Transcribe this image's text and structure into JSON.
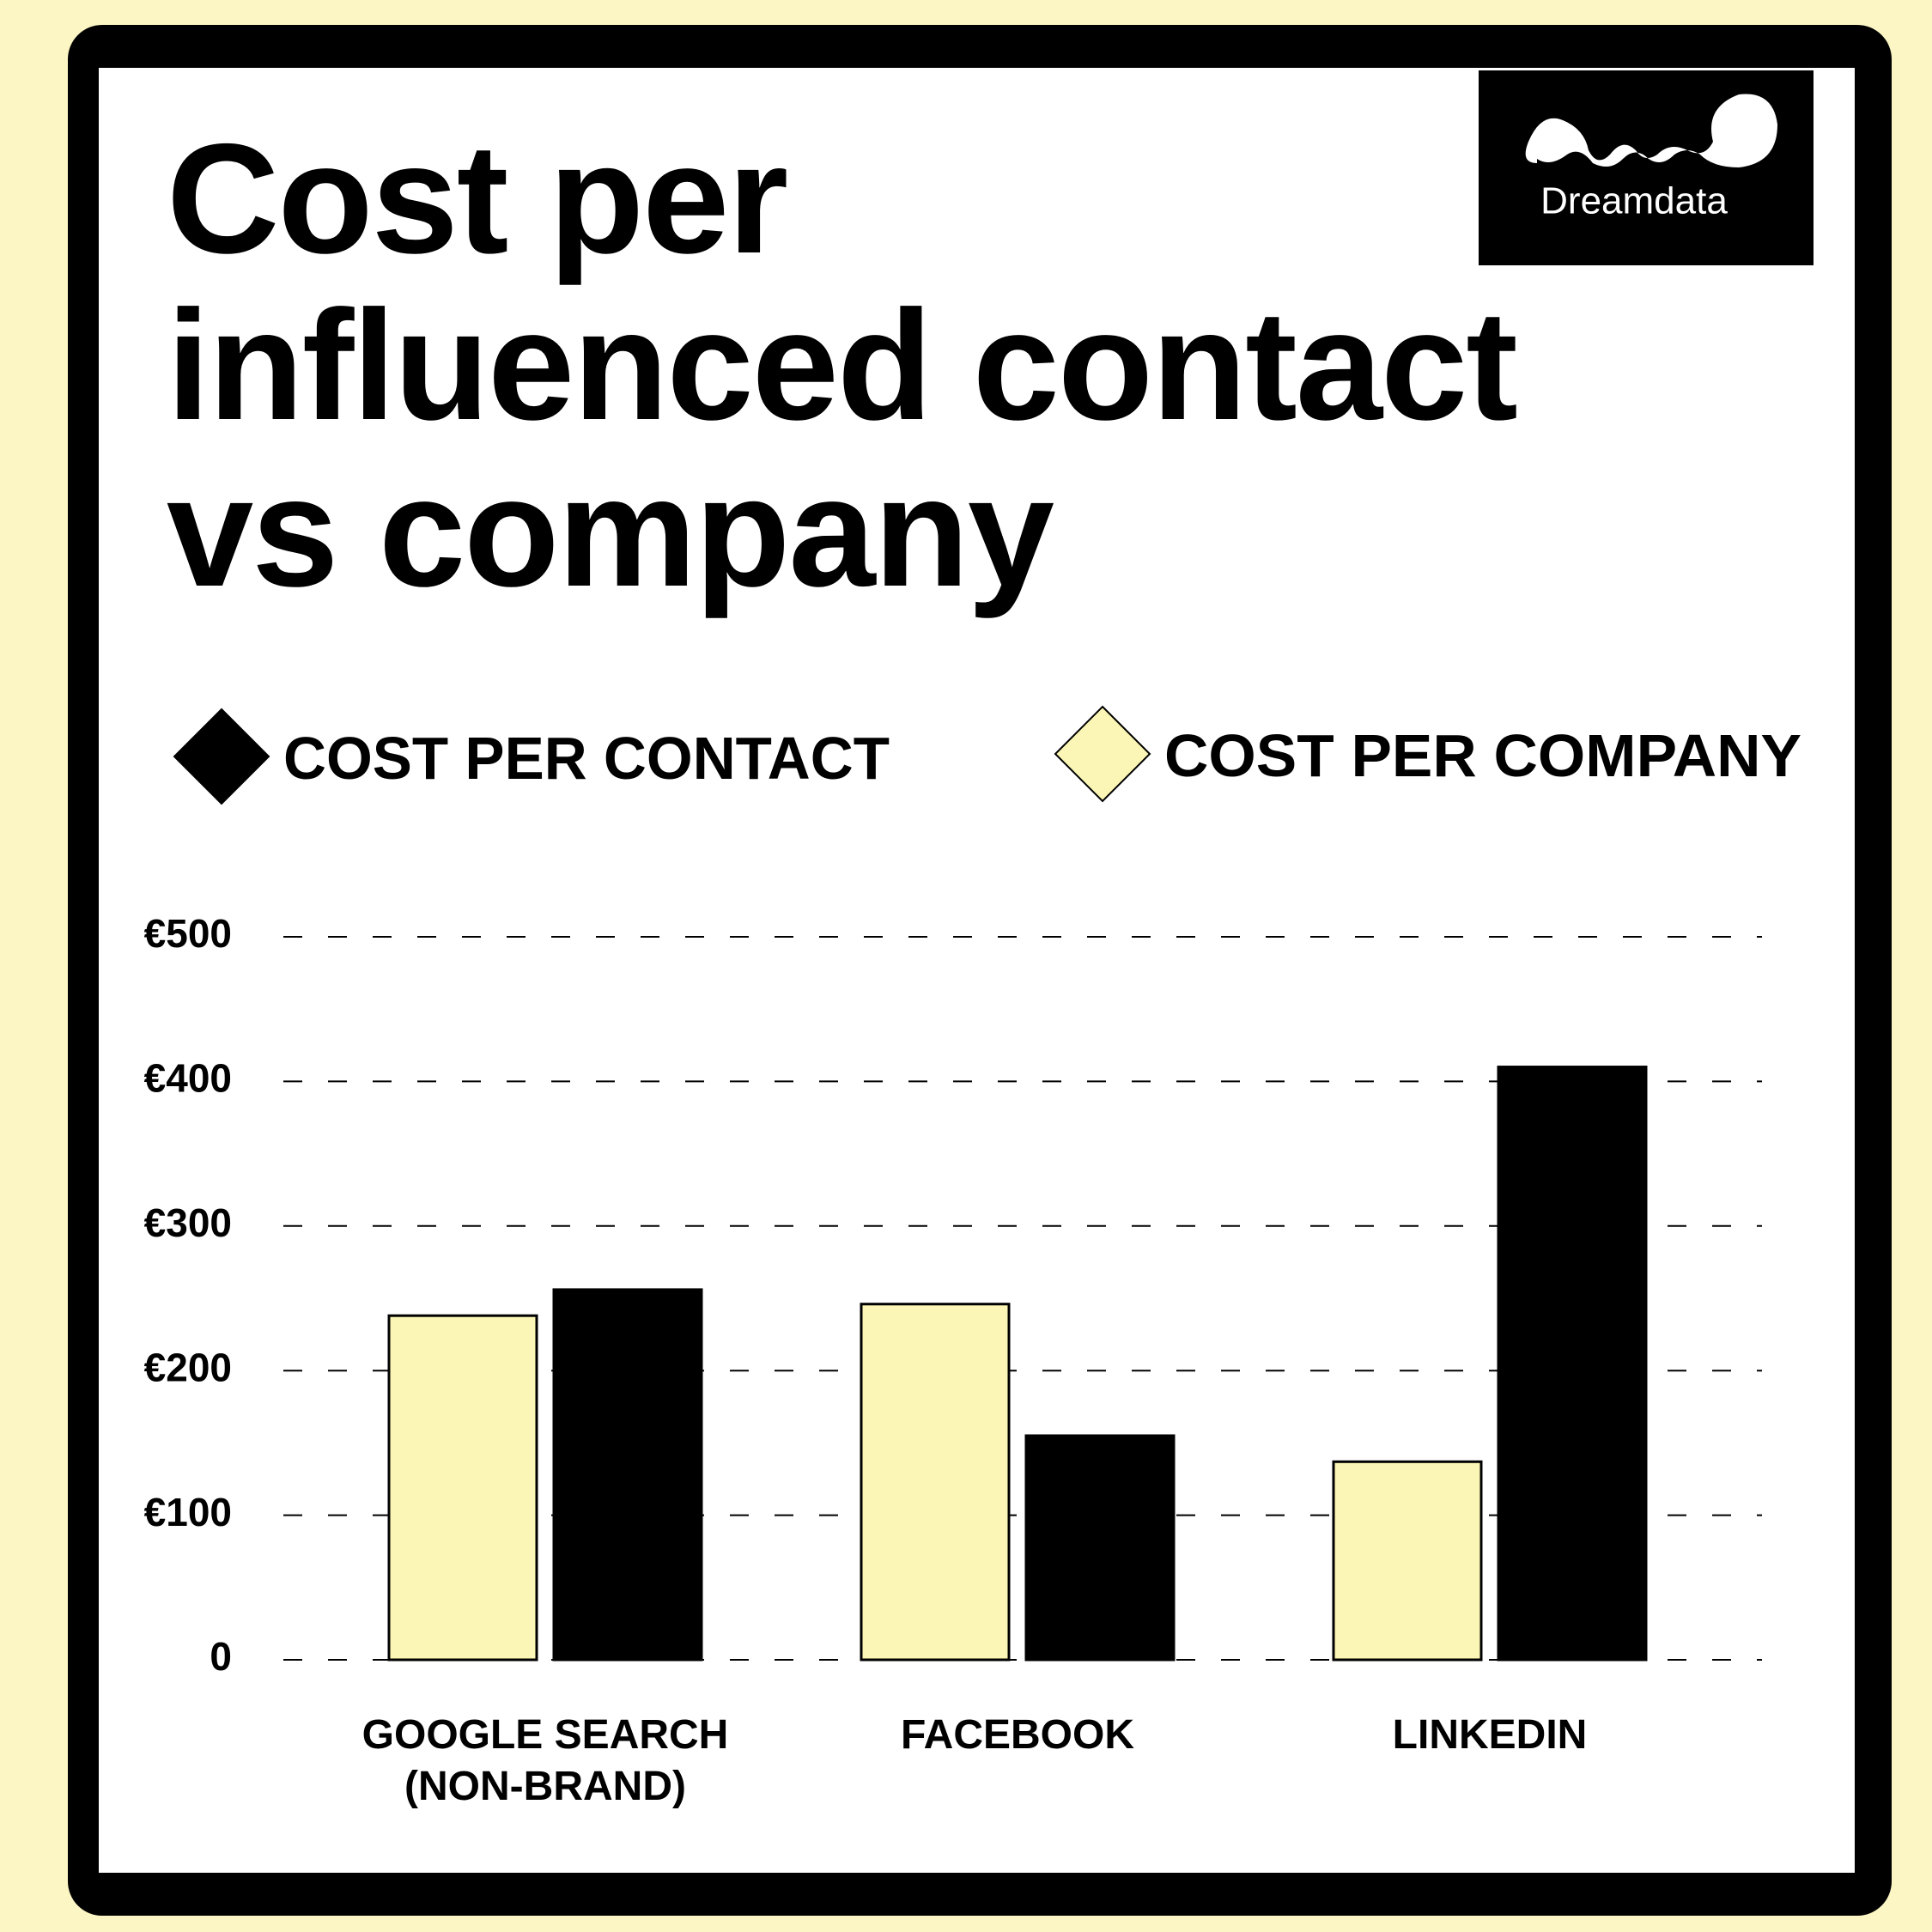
{
  "logo": "Dreamdata",
  "chart_data": {
    "type": "bar",
    "title": "Cost per influenced contact vs company",
    "categories": [
      "GOOGLE SEARCH (NON-BRAND)",
      "FACEBOOK",
      "LINKEDIN"
    ],
    "series": [
      {
        "name": "COST PER CONTACT",
        "color": "#000000",
        "values": [
          256,
          155,
          410
        ]
      },
      {
        "name": "COST PER COMPANY",
        "color": "#fbf6b5",
        "values": [
          238,
          246,
          137
        ]
      }
    ],
    "ylim": [
      0,
      500
    ],
    "yticks": [
      0,
      {
        "value": 100,
        "label": "€100"
      },
      {
        "value": 200,
        "label": "€200"
      },
      {
        "value": 300,
        "label": "€300"
      },
      {
        "value": 400,
        "label": "€400"
      },
      {
        "value": 500,
        "label": "€500"
      }
    ],
    "grid": true
  }
}
